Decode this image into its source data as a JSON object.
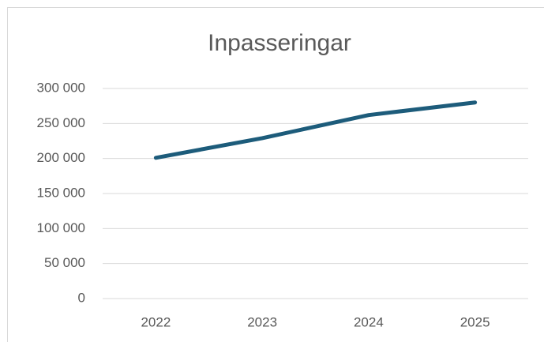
{
  "chart_data": {
    "type": "line",
    "title": "Inpasseringar",
    "categories": [
      "2022",
      "2023",
      "2024",
      "2025"
    ],
    "series": [
      {
        "name": "Inpasseringar",
        "color": "#1d5c7b",
        "values": [
          201000,
          229000,
          262000,
          280000
        ]
      }
    ],
    "ylim": [
      0,
      300000
    ],
    "yticks": [
      0,
      {
        "value": 50000,
        "label": "50 000"
      },
      {
        "value": 100000,
        "label": "100 000"
      },
      {
        "value": 150000,
        "label": "150 000"
      },
      {
        "value": 200000,
        "label": "200 000"
      },
      {
        "value": 250000,
        "label": "250 000"
      },
      {
        "value": 300000,
        "label": "300 000"
      }
    ],
    "grid": true
  }
}
